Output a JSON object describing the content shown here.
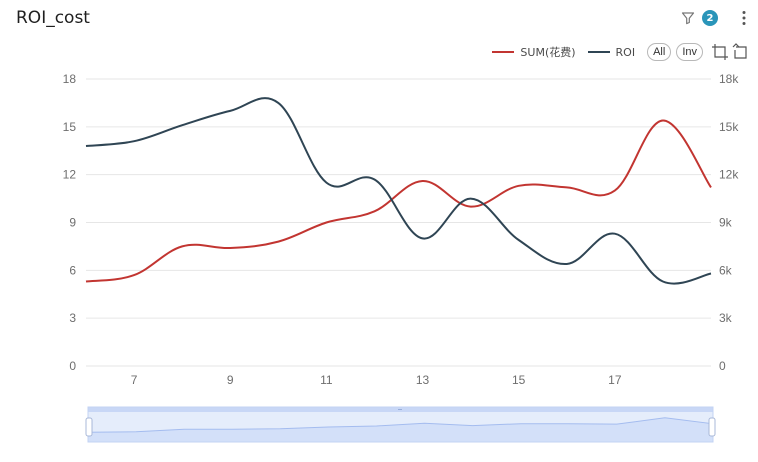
{
  "title": "ROI_cost",
  "filter_count": "2",
  "legend": {
    "buttons": {
      "all": "All",
      "inverse": "Inv"
    }
  },
  "colors": {
    "sum": "#c23531",
    "roi": "#2f4554",
    "grid": "#e6e6e6",
    "badge": "#2a95b9",
    "zoom_fill": "#dfe8fb",
    "zoom_border": "#a9bff0"
  },
  "icons": [
    "filter-icon",
    "more-vertical-icon",
    "zoom-select-icon",
    "zoom-reset-icon"
  ],
  "chart_data": {
    "type": "line",
    "x": [
      6,
      7,
      8,
      9,
      10,
      11,
      12,
      13,
      14,
      15,
      16,
      17,
      18,
      19
    ],
    "x_ticks": [
      "7",
      "9",
      "11",
      "13",
      "15",
      "17"
    ],
    "xlim": [
      6,
      19
    ],
    "series": [
      {
        "name": "SUM(花费)",
        "axis": "right",
        "color": "#c23531",
        "values": [
          5300,
          5700,
          7500,
          7400,
          7800,
          9000,
          9700,
          11600,
          10000,
          11300,
          11200,
          11000,
          15400,
          11200
        ]
      },
      {
        "name": "ROI",
        "axis": "left",
        "color": "#2f4554",
        "values": [
          13.8,
          14.1,
          15.1,
          16.0,
          16.5,
          11.5,
          11.7,
          8.0,
          10.5,
          7.9,
          6.4,
          8.3,
          5.3,
          5.8
        ]
      }
    ],
    "y_left": {
      "ylim": [
        0,
        18
      ],
      "ticks": [
        "0",
        "3",
        "6",
        "9",
        "12",
        "15",
        "18"
      ]
    },
    "y_right": {
      "ylim": [
        0,
        18000
      ],
      "ticks": [
        "0",
        "3k",
        "6k",
        "9k",
        "12k",
        "15k",
        "18k"
      ]
    },
    "grid": true,
    "legend_position": "top-right",
    "data_zoom": {
      "start": 0,
      "end": 100
    }
  }
}
